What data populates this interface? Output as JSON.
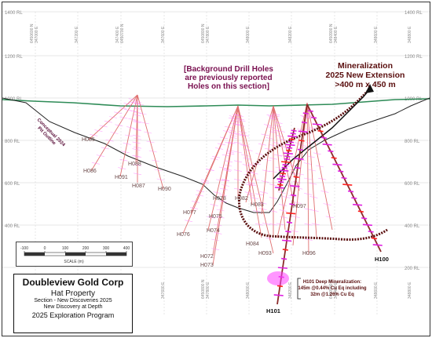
{
  "company": "Doubleview Gold Corp",
  "property": "Hat Property",
  "section_line1": "Section - New Discoveries 2025",
  "section_line2": "New Discovery at Depth",
  "program": "2025 Exploration Program",
  "callouts": {
    "background_line1": "[Background Drill Holes",
    "background_line2": "are previously reported",
    "background_line3": "Holes on this section]",
    "mineral_line1": "Mineralization",
    "mineral_line2": "2025 New Extension",
    "mineral_line3": ">400 m x  450 m",
    "deep_line1": "H101 Deep Mineralization:",
    "deep_line2": "145m @0.44% Cu Eq including",
    "deep_line3": "32m @1.26% Cu Eq",
    "pit_line1": "Conceptual 2024",
    "pit_line2": "Pit Outline"
  },
  "rl_labels": {
    "rl1400": "1400 RL",
    "rl1200": "1200 RL",
    "rl1000": "1000 RL",
    "rl800": "800 RL",
    "rl600": "600 RL",
    "rl400": "400 RL",
    "rl200": "200 RL"
  },
  "easting_labels": [
    "6450600 N\n347000 E",
    "347200 E",
    "347400 E\n6450700 N",
    "347600 E",
    "6450800 N\n347800 E",
    "348000 E",
    "348200 E",
    "6450900 N\n348400 E",
    "348600 E",
    "348800 E"
  ],
  "scale": {
    "title": "SCALE (m)",
    "ticks": [
      "-100",
      "0",
      "100",
      "200",
      "300",
      "400"
    ]
  },
  "holes": {
    "H085": "H085",
    "H086": "H086",
    "H087": "H087",
    "H088": "H088",
    "H090": "H090",
    "H091": "H091",
    "H072": "H072",
    "H073": "H073",
    "H074": "H074",
    "H075": "H075",
    "H076": "H076",
    "H077": "H077",
    "H078": "H078",
    "H082": "H082",
    "H083": "H083",
    "H084": "H084",
    "H093": "H093",
    "H096": "H096",
    "H097": "H097",
    "H100": "H100",
    "H101": "H101"
  },
  "colors": {
    "topography": "#2e8b57",
    "pit_outline": "#333333",
    "extension_outline": "#5a0f0f",
    "background_text": "#7a1050",
    "drill_hole": "#e07070",
    "mineralization": "#ff40ff"
  }
}
